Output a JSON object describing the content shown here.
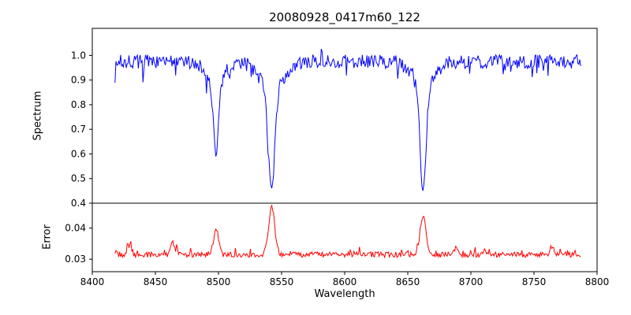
{
  "chart_data": {
    "type": "line",
    "title": "20080928_0417m60_122",
    "xlabel": "Wavelength",
    "xlim": [
      8400,
      8800
    ],
    "x_ticks": [
      8400,
      8450,
      8500,
      8550,
      8600,
      8650,
      8700,
      8750,
      8800
    ],
    "x_tick_labels": [
      "8400",
      "8450",
      "8500",
      "8550",
      "8600",
      "8650",
      "8700",
      "8750",
      "8800"
    ],
    "seed": 7,
    "background": "#ffffff",
    "axis_color": "#000000",
    "legend": "none",
    "grid": false,
    "panels": [
      {
        "name": "spectrum",
        "ylabel": "Spectrum",
        "color": "#0000ff",
        "ylim": [
          0.4,
          1.11
        ],
        "y_ticks": [
          0.4,
          0.5,
          0.6,
          0.7,
          0.8,
          0.9,
          1.0
        ],
        "y_tick_labels": [
          "0.4",
          "0.5",
          "0.6",
          "0.7",
          "0.8",
          "0.9",
          "1.0"
        ],
        "series": {
          "x_start": 8418,
          "x_end": 8787,
          "n_points": 500,
          "baseline": 0.975,
          "noise_amplitude": 0.028,
          "absorption_lines": [
            {
              "center": 8498.0,
              "depth": 0.375,
              "core_width": 2.0,
              "wing_width": 7
            },
            {
              "center": 8542.1,
              "depth": 0.54,
              "core_width": 2.4,
              "wing_width": 9
            },
            {
              "center": 8662.1,
              "depth": 0.525,
              "core_width": 2.2,
              "wing_width": 8
            }
          ]
        }
      },
      {
        "name": "error",
        "ylabel": "Error",
        "color": "#ff0000",
        "ylim": [
          0.026,
          0.048
        ],
        "y_ticks": [
          0.03,
          0.04
        ],
        "y_tick_labels": [
          "0.03",
          "0.04"
        ],
        "series": {
          "x_start": 8418,
          "x_end": 8787,
          "n_points": 500,
          "baseline": 0.0315,
          "noise_amplitude": 0.0009,
          "peaks": [
            {
              "center": 8429,
              "height": 0.003,
              "width": 1.6
            },
            {
              "center": 8464,
              "height": 0.0036,
              "width": 1.6
            },
            {
              "center": 8498.0,
              "height": 0.008,
              "width": 2.0
            },
            {
              "center": 8542.1,
              "height": 0.015,
              "width": 2.4
            },
            {
              "center": 8662.1,
              "height": 0.0128,
              "width": 2.2
            },
            {
              "center": 8688,
              "height": 0.0022,
              "width": 1.5
            },
            {
              "center": 8764,
              "height": 0.0028,
              "width": 1.5
            }
          ]
        }
      }
    ]
  }
}
